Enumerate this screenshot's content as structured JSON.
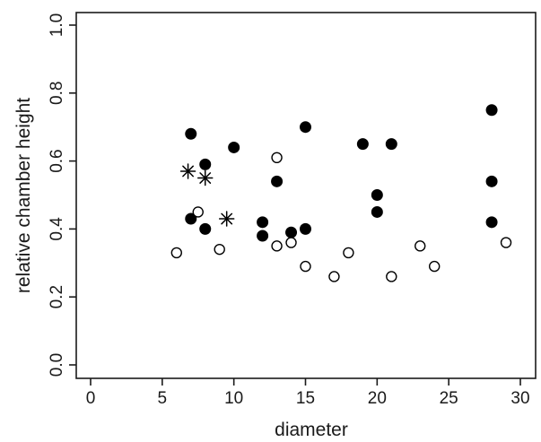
{
  "chart_data": {
    "type": "scatter",
    "title": "",
    "xlabel": "diameter",
    "ylabel": "relative chamber height",
    "xlim": [
      0,
      30
    ],
    "ylim": [
      0.0,
      1.0
    ],
    "xticks": [
      0,
      5,
      10,
      15,
      20,
      25,
      30
    ],
    "yticks": [
      0.0,
      0.2,
      0.4,
      0.6,
      0.8,
      1.0
    ],
    "xtick_labels": [
      "0",
      "5",
      "10",
      "15",
      "20",
      "25",
      "30"
    ],
    "ytick_labels": [
      "0.0",
      "0.2",
      "0.4",
      "0.6",
      "0.8",
      "1.0"
    ],
    "grid": false,
    "legend": "none",
    "series": [
      {
        "marker": "filled-circle",
        "color": "#000000",
        "points": [
          {
            "x": 7,
            "y": 0.68
          },
          {
            "x": 7,
            "y": 0.43
          },
          {
            "x": 8,
            "y": 0.59
          },
          {
            "x": 8,
            "y": 0.4
          },
          {
            "x": 10,
            "y": 0.64
          },
          {
            "x": 12,
            "y": 0.42
          },
          {
            "x": 12,
            "y": 0.38
          },
          {
            "x": 13,
            "y": 0.54
          },
          {
            "x": 14,
            "y": 0.39
          },
          {
            "x": 15,
            "y": 0.7
          },
          {
            "x": 15,
            "y": 0.4
          },
          {
            "x": 19,
            "y": 0.65
          },
          {
            "x": 20,
            "y": 0.5
          },
          {
            "x": 20,
            "y": 0.45
          },
          {
            "x": 21,
            "y": 0.65
          },
          {
            "x": 28,
            "y": 0.75
          },
          {
            "x": 28,
            "y": 0.54
          },
          {
            "x": 28,
            "y": 0.42
          }
        ]
      },
      {
        "marker": "open-circle",
        "color": "#000000",
        "points": [
          {
            "x": 6,
            "y": 0.33
          },
          {
            "x": 7.5,
            "y": 0.45
          },
          {
            "x": 9,
            "y": 0.34
          },
          {
            "x": 13,
            "y": 0.61
          },
          {
            "x": 13,
            "y": 0.35
          },
          {
            "x": 14,
            "y": 0.36
          },
          {
            "x": 15,
            "y": 0.29
          },
          {
            "x": 17,
            "y": 0.26
          },
          {
            "x": 18,
            "y": 0.33
          },
          {
            "x": 21,
            "y": 0.26
          },
          {
            "x": 23,
            "y": 0.35
          },
          {
            "x": 24,
            "y": 0.29
          },
          {
            "x": 29,
            "y": 0.36
          }
        ]
      },
      {
        "marker": "asterisk",
        "color": "#000000",
        "points": [
          {
            "x": 6.8,
            "y": 0.57
          },
          {
            "x": 8,
            "y": 0.55
          },
          {
            "x": 9.5,
            "y": 0.43
          }
        ]
      }
    ]
  }
}
